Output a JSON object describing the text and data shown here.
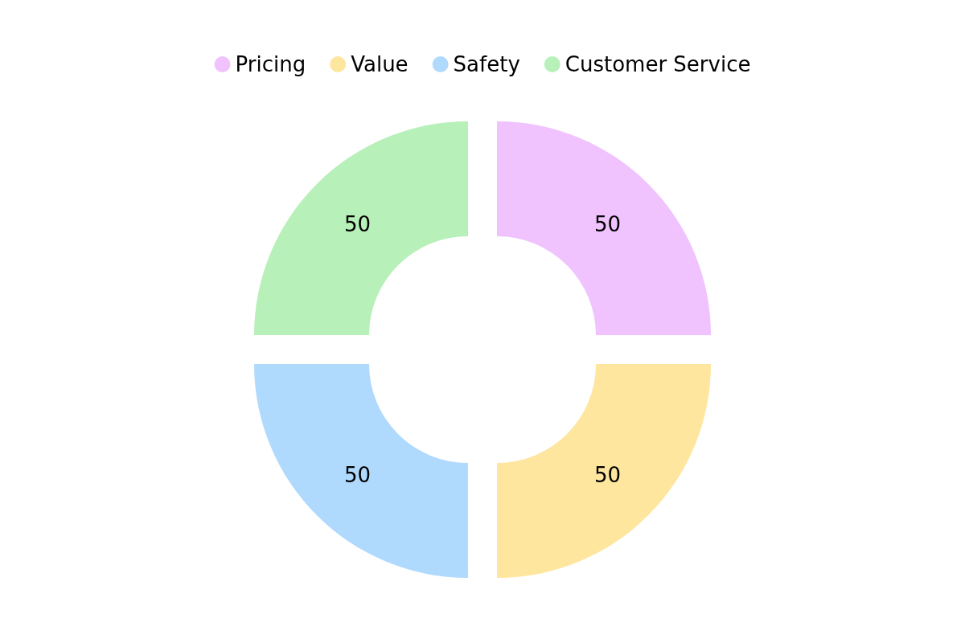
{
  "chart_data": {
    "type": "donut",
    "categories": [
      "Pricing",
      "Value",
      "Safety",
      "Customer Service"
    ],
    "values": [
      50,
      50,
      50,
      50
    ],
    "colors": [
      "#f0c2fe",
      "#fee69e",
      "#b0dafd",
      "#b8f0b9"
    ],
    "legend": "top",
    "data_labels": true
  }
}
